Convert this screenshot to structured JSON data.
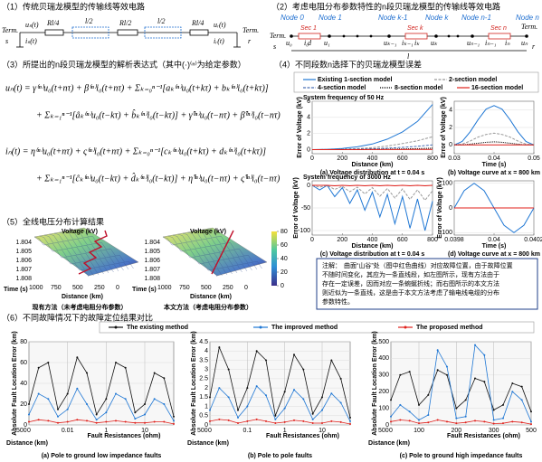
{
  "panel1": {
    "title": "（1）传统贝瑞龙模型的传输线等效电路",
    "term": "Term.",
    "s": "s",
    "r": "r",
    "us": "uₛ(t)",
    "is": "iₛ(t)",
    "ur": "uᵣ(t)",
    "ir": "iᵣ(t)",
    "r4": "Rl/4",
    "l2": "l/2",
    "r2": "Rl/2"
  },
  "panel2": {
    "title": "（2）考虑电阻分布参数特性的n段贝瑞龙模型的传输线等效电路",
    "nodes": [
      "Node 0",
      "Node 1",
      "Node k-1",
      "Node k",
      "Node n-1",
      "Node n"
    ],
    "secs": [
      "Sec 1",
      "Sec k",
      "Sec n"
    ],
    "term": "Term.",
    "s": "s",
    "r": "r",
    "u": [
      "u₀",
      "u₁",
      "uₖ₋₁",
      "uₖ",
      "uₙ₋₁",
      "uₙ"
    ],
    "i": [
      "i₀",
      "i₁",
      "iₖ₋₁",
      "iₖ",
      "iₙ₋₁",
      "iₙ"
    ],
    "d": "d",
    "l": "l"
  },
  "panel3": {
    "title": "（3）所提出的n段贝瑞龙模型的解析表达式（其中(·)⁽ⁿ⁾为给定参数）",
    "equations": [
      "uₙ(t) = γ⁽ⁿ⁾u₀(t+nτ) + β⁽ⁿ⁾i₀(t+nτ) + Σₖ₌₀ⁿ⁻¹[aₖ⁽ⁿ⁾u₀(t+kτ) + bₖ⁽ⁿ⁾i₀(t+kτ)]",
      "+ Σₖ₌₁ⁿ⁻¹[âₖ⁽ⁿ⁾u₀(t−kτ) + b̂ₖ⁽ⁿ⁾i₀(t−kτ)] + γ̂⁽ⁿ⁾u₀(t−nτ) + β̂⁽ⁿ⁾i₀(t−nτ)",
      "iₙ(t) = η⁽ⁿ⁾u₀(t+nτ) + ς⁽ⁿ⁾i₀(t+nτ) + Σₖ₌₀ⁿ⁻¹[cₖ⁽ⁿ⁾u₀(t+kτ) + dₖ⁽ⁿ⁾i₀(t+kτ)]",
      "+ Σₖ₌₁ⁿ⁻¹[ĉₖ⁽ⁿ⁾u₀(t−kτ) + d̂ₖ⁽ⁿ⁾i₀(t−kτ)] + η̂⁽ⁿ⁾u₀(t−nτ) + ς̂⁽ⁿ⁾i₀(t−nτ)"
    ]
  },
  "panel4": {
    "title": "（4）不同段数n选择下的贝瑞龙模型误差",
    "freq1": "System frequency of 50 Hz",
    "freq2": "System frequency of 3000 Hz"
  },
  "panel5": {
    "title": "（5）全线电压分布计算结果",
    "zlabel": "Voltage (kV)",
    "tlabel": "Time (s)",
    "dlabel": "Distance (km)",
    "tticks": [
      "1.804",
      "1.805",
      "1.806",
      "1.807",
      "1.808"
    ],
    "dticks": [
      "1000",
      "750",
      "500",
      "250",
      "0"
    ],
    "captions": [
      "现有方法（未考虑电阻分布参数）",
      "本文方法（考虑电阻分布参数）"
    ],
    "clim": [
      0,
      80
    ],
    "cticks": [
      0,
      20,
      40,
      60,
      80
    ]
  },
  "note": {
    "head": "注解：",
    "body": [
      "曲面“山谷”处（图中红色曲线）对应故障位置，由于故障位置",
      "不随时间变化，其应为一条直线段，如左图所示，现有方法由于",
      "存在一定误差，因而对应一条蜿蜒折线；而右图所示的本文方法",
      "则近似为一条直线，这是由于本文方法考虑了输电线电缆的分布",
      "参数特性。"
    ]
  },
  "panel6": {
    "title": "（6）不同故障情况下的故障定位结果对比"
  },
  "chart_data": [
    {
      "type": "line",
      "caption": "(a) Voltage distribution at t = 0.04 s",
      "xlabel": "Distance (km)",
      "ylabel": "Error of Voltage (kV)",
      "x": [
        0,
        100,
        200,
        300,
        400,
        500,
        600,
        700,
        800
      ],
      "xlim": [
        0,
        800
      ],
      "xticks": [
        0,
        200,
        400,
        600,
        800
      ],
      "ylim": [
        -0.5,
        6
      ],
      "yticks": [
        0,
        2,
        4,
        6
      ],
      "series": [
        {
          "name": "Existing 1-section model",
          "color": "#1f77d4",
          "style": "solid",
          "values": [
            0,
            0.05,
            0.15,
            0.35,
            0.7,
            1.3,
            2.2,
            3.5,
            5.6
          ]
        },
        {
          "name": "2-section model",
          "color": "#999999",
          "style": "dashed",
          "values": [
            0,
            0.02,
            0.06,
            0.13,
            0.25,
            0.45,
            0.75,
            1.1,
            1.6
          ]
        },
        {
          "name": "4-section model",
          "color": "#4a6fb5",
          "style": "dashed",
          "values": [
            0,
            0.01,
            0.03,
            0.06,
            0.1,
            0.18,
            0.28,
            0.42,
            0.6
          ]
        },
        {
          "name": "8-section model",
          "color": "#000000",
          "style": "dotted",
          "values": [
            0,
            0,
            0.01,
            0.02,
            0.04,
            0.06,
            0.09,
            0.13,
            0.18
          ]
        },
        {
          "name": "16-section model",
          "color": "#e0201b",
          "style": "solid",
          "values": [
            0,
            0,
            0,
            0,
            0.01,
            0.01,
            0.02,
            0.03,
            0.04
          ]
        }
      ]
    },
    {
      "type": "line",
      "caption": "(b) Voltage curve at x = 800 km",
      "xlabel": "Time (s)",
      "ylabel": "Error of Voltage (kV)",
      "x": [
        0.03,
        0.032,
        0.034,
        0.036,
        0.038,
        0.04,
        0.042,
        0.044,
        0.046,
        0.048,
        0.05
      ],
      "xlim": [
        0.03,
        0.05
      ],
      "xticks": [
        0.03,
        0.04,
        0.05
      ],
      "ylim": [
        -1,
        5
      ],
      "yticks": [
        0,
        2,
        4
      ],
      "series": [
        {
          "color": "#1f77d4",
          "style": "solid",
          "values": [
            0,
            0.4,
            1.5,
            2.9,
            4.1,
            4.5,
            4.1,
            2.9,
            1.5,
            0.4,
            0
          ]
        },
        {
          "color": "#999999",
          "style": "dashed",
          "values": [
            0,
            0.1,
            0.45,
            0.9,
            1.2,
            1.35,
            1.2,
            0.9,
            0.45,
            0.1,
            0
          ]
        },
        {
          "color": "#000000",
          "style": "dotted",
          "values": [
            0,
            0,
            0.1,
            0.2,
            0.3,
            0.35,
            0.3,
            0.2,
            0.1,
            0,
            0
          ]
        },
        {
          "color": "#e0201b",
          "style": "solid",
          "values": [
            0,
            0,
            0,
            0,
            0,
            0,
            0,
            0,
            0,
            0,
            0
          ]
        }
      ]
    },
    {
      "type": "line",
      "caption": "(c) Voltage distribution at t = 0.04 s",
      "xlabel": "Distance (km)",
      "ylabel": "Error of Voltage (kV)",
      "x": [
        0,
        50,
        100,
        150,
        200,
        250,
        300,
        350,
        400,
        450,
        500,
        550,
        600,
        650,
        700,
        750,
        800
      ],
      "xlim": [
        0,
        800
      ],
      "xticks": [
        0,
        200,
        400,
        600,
        800
      ],
      "ylim": [
        -110,
        10
      ],
      "yticks": [
        -100,
        -50,
        0
      ],
      "series": [
        {
          "color": "#1f77d4",
          "style": "solid",
          "values": [
            0,
            -10,
            0,
            -25,
            -5,
            -40,
            -10,
            -55,
            -15,
            -70,
            -20,
            -85,
            -25,
            -95,
            -30,
            -100,
            -35
          ]
        },
        {
          "color": "#999999",
          "style": "dashed",
          "values": [
            0,
            -4,
            0,
            -9,
            -2,
            -14,
            -4,
            -19,
            -5,
            -24,
            -7,
            -28,
            -8,
            -31,
            -10,
            -33,
            -12
          ]
        },
        {
          "color": "#e0201b",
          "style": "solid",
          "values": [
            0,
            0,
            0,
            -1,
            0,
            -1,
            0,
            -1,
            0,
            -1,
            0,
            -1,
            0,
            -1,
            0,
            -1,
            0
          ]
        }
      ]
    },
    {
      "type": "line",
      "caption": "(d) Voltage curve at x = 800 km",
      "xlabel": "Time (s)",
      "ylabel": "Error of Voltage (kV)",
      "x": [
        0.0398,
        0.03985,
        0.0399,
        0.03995,
        0.04,
        0.04005,
        0.0401,
        0.04015,
        0.0402
      ],
      "xlim": [
        0.0398,
        0.0402
      ],
      "xticks": [
        0.0398,
        0.04,
        0.0402
      ],
      "ylim": [
        -110,
        110
      ],
      "yticks": [
        -100,
        0,
        100
      ],
      "series": [
        {
          "color": "#1f77d4",
          "style": "solid",
          "values": [
            0,
            70,
            100,
            70,
            0,
            -70,
            -100,
            -70,
            0
          ]
        },
        {
          "color": "#e0201b",
          "style": "solid",
          "values": [
            0,
            0,
            0,
            0,
            0,
            0,
            0,
            0,
            0
          ]
        }
      ]
    },
    {
      "type": "line",
      "caption": "(a) Pole to ground low impedance faults",
      "xlabel": "Fault Resistances (ohm)",
      "dlabel": "Distance (km)",
      "dticks": [
        "500",
        "0"
      ],
      "ylabel": "Absolute Fault Location Error (km)",
      "categories": [
        null,
        null,
        null,
        null,
        "0.01",
        null,
        null,
        null,
        "1",
        null,
        null,
        null,
        "10",
        null,
        null,
        null
      ],
      "ylim": [
        0,
        80
      ],
      "yticks": [
        0,
        20,
        40,
        60,
        80
      ],
      "series": [
        {
          "name": "The existing method",
          "color": "#111111",
          "values": [
            20,
            55,
            60,
            15,
            30,
            65,
            50,
            10,
            25,
            60,
            55,
            12,
            20,
            50,
            45,
            8
          ]
        },
        {
          "name": "The improved method",
          "color": "#1f77d4",
          "values": [
            10,
            30,
            25,
            8,
            15,
            35,
            20,
            5,
            12,
            30,
            25,
            6,
            10,
            25,
            20,
            4
          ]
        },
        {
          "name": "The proposed method",
          "color": "#e0201b",
          "values": [
            3,
            5,
            4,
            2,
            3,
            5,
            4,
            2,
            3,
            4,
            3,
            2,
            2,
            3,
            3,
            1
          ]
        }
      ]
    },
    {
      "type": "line",
      "caption": "(b) Pole to pole faults",
      "xlabel": "Fault Resistances (ohm)",
      "dlabel": "Distance (km)",
      "dticks": [
        "500",
        "0"
      ],
      "ylabel": "Absolute Fault Location Error (km)",
      "categories": [
        null,
        null,
        null,
        null,
        "0.1",
        null,
        null,
        null,
        "1",
        null,
        null,
        null,
        "10",
        null,
        null,
        null
      ],
      "ylim": [
        0,
        4.5
      ],
      "yticks": [
        0,
        0.5,
        1,
        1.5,
        2,
        2.5,
        3,
        3.5,
        4,
        4.5
      ],
      "series": [
        {
          "color": "#111111",
          "values": [
            1.5,
            4.2,
            3,
            0.8,
            2,
            4,
            3.5,
            0.5,
            1.8,
            3.8,
            3,
            0.6,
            1.5,
            3.5,
            2.5,
            0.4
          ]
        },
        {
          "color": "#1f77d4",
          "values": [
            0.8,
            2,
            1.5,
            0.4,
            1,
            2.1,
            1.6,
            0.3,
            0.9,
            1.9,
            1.4,
            0.3,
            0.8,
            1.7,
            1.2,
            0.2
          ]
        },
        {
          "color": "#e0201b",
          "values": [
            0.2,
            0.3,
            0.25,
            0.1,
            0.2,
            0.3,
            0.2,
            0.1,
            0.15,
            0.25,
            0.2,
            0.1,
            0.1,
            0.2,
            0.15,
            0.05
          ]
        }
      ]
    },
    {
      "type": "line",
      "caption": "(c) Pole to ground high impedance faults",
      "xlabel": "Fault Resistances (ohm)",
      "dlabel": "Distance (km)",
      "dticks": [
        "500",
        "0"
      ],
      "ylabel": "Absolute Fault Location Error (km)",
      "categories": [
        null,
        null,
        null,
        "100",
        null,
        null,
        null,
        "200",
        null,
        null,
        null,
        "300",
        null,
        null,
        null,
        "500"
      ],
      "ylim": [
        0,
        500
      ],
      "yticks": [
        0,
        100,
        200,
        300,
        400,
        500
      ],
      "series": [
        {
          "color": "#111111",
          "values": [
            150,
            300,
            320,
            120,
            180,
            330,
            300,
            100,
            150,
            280,
            260,
            90,
            120,
            250,
            230,
            80
          ]
        },
        {
          "color": "#1f77d4",
          "values": [
            50,
            120,
            80,
            30,
            60,
            450,
            350,
            40,
            50,
            480,
            420,
            30,
            40,
            200,
            150,
            20
          ]
        },
        {
          "color": "#e0201b",
          "values": [
            20,
            30,
            25,
            10,
            15,
            30,
            20,
            10,
            15,
            25,
            20,
            8,
            10,
            20,
            15,
            5
          ]
        }
      ]
    }
  ]
}
